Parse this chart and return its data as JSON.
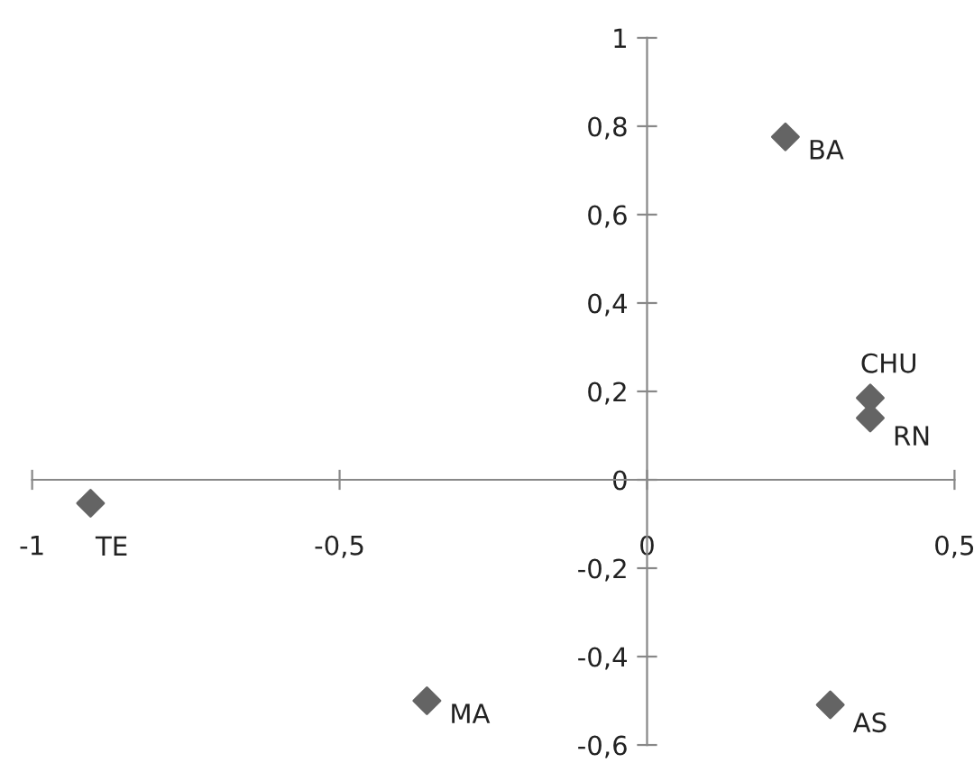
{
  "chart_data": {
    "type": "scatter",
    "marker": "diamond",
    "grid": false,
    "legend": false,
    "series": [
      {
        "color": "#646464",
        "x": [
          0.225,
          0.363,
          0.363,
          -0.905,
          -0.358,
          0.298
        ],
        "values": [
          0.776,
          0.185,
          0.14,
          -0.053,
          -0.5,
          -0.509
        ]
      }
    ],
    "annotations": [
      {
        "text": "BA",
        "x": 0.225,
        "y": 0.776
      },
      {
        "text": "CHU",
        "x": 0.363,
        "y": 0.185
      },
      {
        "text": "RN",
        "x": 0.363,
        "y": 0.14
      },
      {
        "text": "TE",
        "x": -0.905,
        "y": -0.053
      },
      {
        "text": "MA",
        "x": -0.358,
        "y": -0.5
      },
      {
        "text": "AS",
        "x": 0.298,
        "y": -0.509
      }
    ],
    "xlim": [
      -1,
      0.5
    ],
    "ylim": [
      -0.6,
      1
    ],
    "xticks": [
      -1,
      {
        "value": -0.5,
        "label": "-0,5"
      },
      0,
      {
        "value": 0.5,
        "label": "0,5"
      }
    ],
    "yticks": [
      {
        "value": -0.6,
        "label": "-0,6"
      },
      {
        "value": -0.4,
        "label": "-0,4"
      },
      {
        "value": -0.2,
        "label": "-0,2"
      },
      0,
      {
        "value": 0.2,
        "label": "0,2"
      },
      {
        "value": 0.4,
        "label": "0,4"
      },
      {
        "value": 0.6,
        "label": "0,6"
      },
      {
        "value": 0.8,
        "label": "0,8"
      },
      1
    ]
  }
}
